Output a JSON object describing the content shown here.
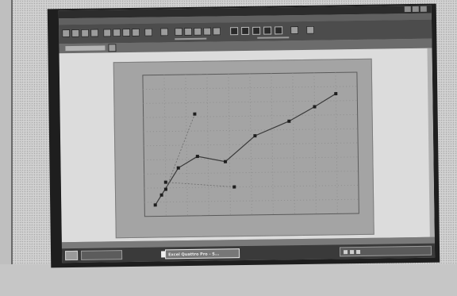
{
  "taskbar": {
    "items": [
      {
        "label": ""
      },
      {
        "label": "Excel Quattro Pro - S..."
      }
    ]
  },
  "colors": {
    "screen": "#8a8a8a",
    "plot_bg": "#a4a4a4",
    "window_bg": "#dcdcdc",
    "taskbar": "#3a3a3a"
  },
  "icons": [
    "start-icon",
    "app-icon",
    "tray-icon"
  ],
  "chart_data": {
    "type": "scatter",
    "title": "",
    "xlabel": "",
    "ylabel": "",
    "grid": true,
    "xlim": [
      0,
      10
    ],
    "ylim": [
      0,
      10
    ],
    "series": [
      {
        "x": [
          0.5,
          0.8,
          1.6,
          2.5,
          3.8,
          5.2,
          6.8,
          8.0,
          9.0
        ],
        "y": [
          0.8,
          1.5,
          3.4,
          4.2,
          3.8,
          5.6,
          6.6,
          7.6,
          8.5
        ]
      },
      {
        "x": [
          1.0,
          4.2
        ],
        "y": [
          2.4,
          2.0
        ]
      },
      {
        "x": [
          1.0,
          2.4
        ],
        "y": [
          1.9,
          7.2
        ]
      }
    ]
  }
}
